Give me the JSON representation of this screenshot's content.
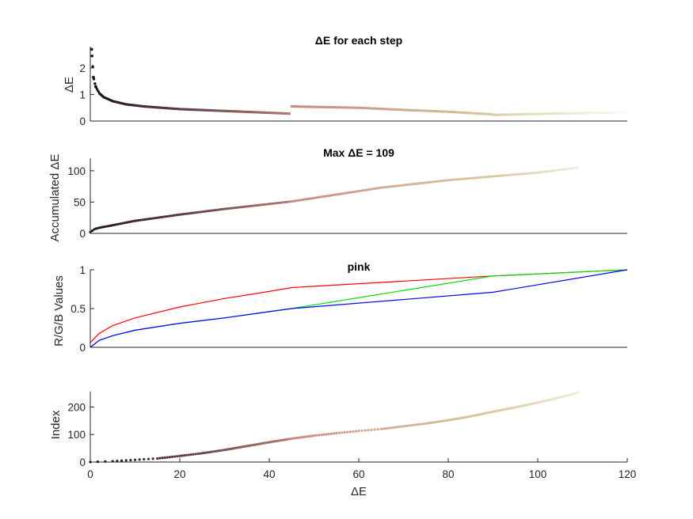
{
  "chart_data": [
    {
      "type": "scatter",
      "title": "ΔE for each step",
      "xlabel": "",
      "ylabel": "ΔE",
      "xlim": [
        0,
        120
      ],
      "ylim": [
        0,
        2.8
      ],
      "yticks": [
        "0",
        "1",
        "2"
      ],
      "grid": false,
      "segments": [
        {
          "x_start": 0.3,
          "x_end": 44.5,
          "color_start": "#1a1111",
          "color_end": "#b07878",
          "points": [
            [
              0.3,
              2.7
            ],
            [
              0.4,
              2.45
            ],
            [
              0.7,
              1.65
            ],
            [
              1.2,
              1.3
            ],
            [
              2,
              1.05
            ],
            [
              3,
              0.9
            ],
            [
              5,
              0.75
            ],
            [
              8,
              0.63
            ],
            [
              12,
              0.55
            ],
            [
              20,
              0.45
            ],
            [
              30,
              0.38
            ],
            [
              44.5,
              0.28
            ]
          ]
        },
        {
          "x_start": 45,
          "x_end": 90,
          "color_start": "#c48a84",
          "color_end": "#d7c79c",
          "points": [
            [
              45,
              0.55
            ],
            [
              60,
              0.5
            ],
            [
              70,
              0.42
            ],
            [
              80,
              0.35
            ],
            [
              90,
              0.25
            ]
          ]
        },
        {
          "x_start": 90,
          "x_end": 120,
          "color_start": "#dcd0a8",
          "color_end": "#fbfbf5",
          "points": [
            [
              90,
              0.23
            ],
            [
              100,
              0.27
            ],
            [
              110,
              0.3
            ],
            [
              120,
              0.33
            ]
          ]
        }
      ]
    },
    {
      "type": "scatter",
      "title": "Max ΔE = 109",
      "xlabel": "",
      "ylabel": "Accumulated ΔE",
      "xlim": [
        0,
        120
      ],
      "ylim": [
        0,
        120
      ],
      "yticks": [
        "0",
        "50",
        "100"
      ],
      "grid": false,
      "points": [
        [
          0,
          2
        ],
        [
          1,
          7
        ],
        [
          2,
          9
        ],
        [
          5,
          13
        ],
        [
          10,
          20
        ],
        [
          20,
          30
        ],
        [
          30,
          39
        ],
        [
          40,
          47
        ],
        [
          45,
          51
        ],
        [
          55,
          62
        ],
        [
          65,
          73
        ],
        [
          80,
          85
        ],
        [
          90,
          91
        ],
        [
          100,
          97
        ],
        [
          109,
          105
        ]
      ]
    },
    {
      "type": "line",
      "title": "pink",
      "xlabel": "",
      "ylabel": "R/G/B Values",
      "xlim": [
        0,
        120
      ],
      "ylim": [
        0,
        1
      ],
      "yticks": [
        "0",
        "0.5",
        "1"
      ],
      "grid": false,
      "series": [
        {
          "color": "#ff0000",
          "values": [
            [
              0,
              0.06
            ],
            [
              2,
              0.18
            ],
            [
              5,
              0.28
            ],
            [
              10,
              0.38
            ],
            [
              20,
              0.52
            ],
            [
              30,
              0.63
            ],
            [
              40,
              0.72
            ],
            [
              45,
              0.77
            ],
            [
              90,
              0.92
            ],
            [
              120,
              1
            ]
          ]
        },
        {
          "color": "#00dd00",
          "values": [
            [
              0,
              0.0
            ],
            [
              2,
              0.09
            ],
            [
              5,
              0.15
            ],
            [
              10,
              0.22
            ],
            [
              20,
              0.31
            ],
            [
              30,
              0.38
            ],
            [
              40,
              0.46
            ],
            [
              45,
              0.5
            ],
            [
              90,
              0.92
            ],
            [
              120,
              1
            ]
          ]
        },
        {
          "color": "#0000ff",
          "values": [
            [
              0,
              0.0
            ],
            [
              2,
              0.09
            ],
            [
              5,
              0.15
            ],
            [
              10,
              0.22
            ],
            [
              20,
              0.31
            ],
            [
              30,
              0.38
            ],
            [
              40,
              0.46
            ],
            [
              45,
              0.5
            ],
            [
              90,
              0.71
            ],
            [
              120,
              1
            ]
          ]
        }
      ]
    },
    {
      "type": "scatter",
      "title": "",
      "xlabel": "ΔE",
      "ylabel": "Index",
      "xlim": [
        0,
        120
      ],
      "ylim": [
        0,
        256
      ],
      "xticks": [
        "0",
        "20",
        "40",
        "60",
        "80",
        "100",
        "120"
      ],
      "yticks": [
        "0",
        "100",
        "200"
      ],
      "grid": false,
      "points": [
        [
          0,
          0
        ],
        [
          5,
          3
        ],
        [
          10,
          8
        ],
        [
          15,
          13
        ],
        [
          20,
          22
        ],
        [
          25,
          32
        ],
        [
          30,
          44
        ],
        [
          35,
          58
        ],
        [
          40,
          72
        ],
        [
          45,
          85
        ],
        [
          50,
          96
        ],
        [
          55,
          105
        ],
        [
          60,
          113
        ],
        [
          65,
          120
        ],
        [
          70,
          130
        ],
        [
          75,
          140
        ],
        [
          80,
          152
        ],
        [
          85,
          166
        ],
        [
          90,
          183
        ],
        [
          95,
          199
        ],
        [
          100,
          216
        ],
        [
          105,
          235
        ],
        [
          109,
          252
        ]
      ]
    }
  ]
}
